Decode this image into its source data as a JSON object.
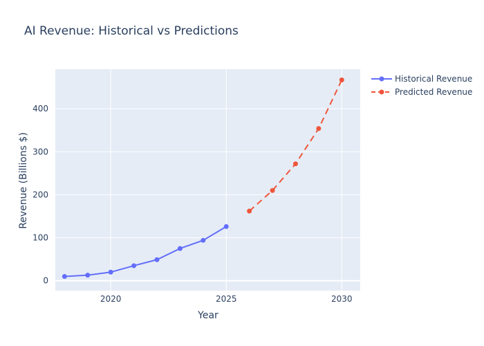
{
  "chart_data": {
    "type": "line",
    "title": "AI Revenue: Historical vs Predictions",
    "xlabel": "Year",
    "ylabel": "Revenue (Billions $)",
    "xlim": [
      2017.6,
      2030.8
    ],
    "ylim": [
      -23,
      492
    ],
    "x_ticks": [
      2020,
      2025,
      2030
    ],
    "y_ticks": [
      0,
      100,
      200,
      300,
      400
    ],
    "grid": true,
    "legend_position": "top-right",
    "colors": {
      "plot_background": "#e5ecf6",
      "grid": "#ffffff",
      "text": "#2a3f5f"
    },
    "series": [
      {
        "name": "Historical Revenue",
        "color": "#636efa",
        "dash": "solid",
        "x": [
          2018,
          2019,
          2020,
          2021,
          2022,
          2023,
          2024,
          2025
        ],
        "y": [
          10,
          13,
          20,
          35,
          49,
          75,
          94,
          126
        ]
      },
      {
        "name": "Predicted Revenue",
        "color": "#ef553b",
        "dash": "dashed",
        "x": [
          2026,
          2027,
          2028,
          2029,
          2030
        ],
        "y": [
          162,
          210,
          272,
          354,
          467
        ]
      }
    ]
  }
}
